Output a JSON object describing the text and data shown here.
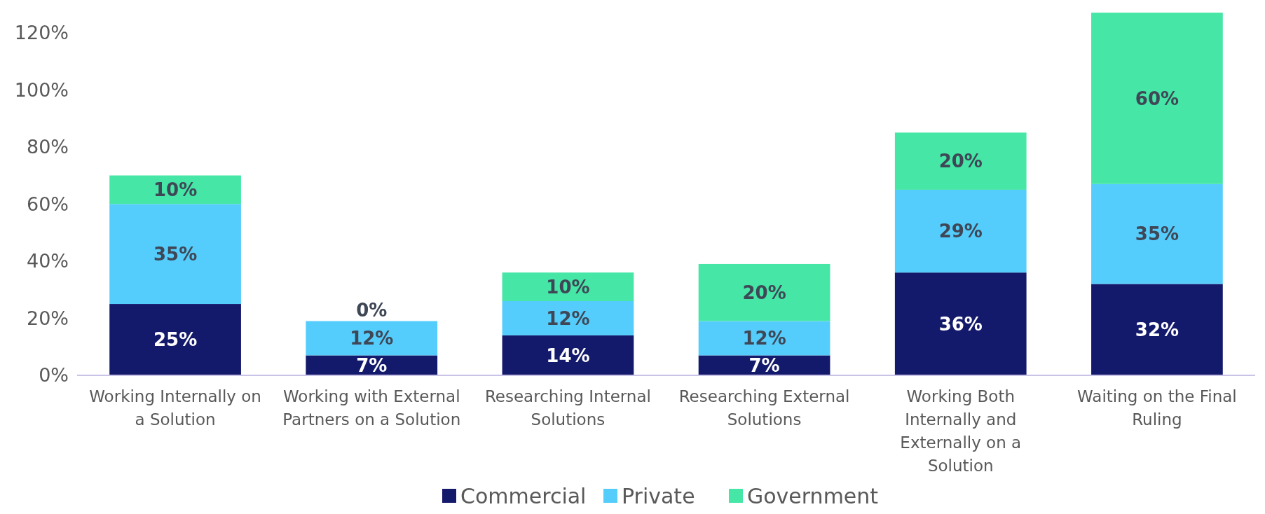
{
  "chart_data": {
    "type": "bar",
    "stacked": true,
    "categories": [
      "Working Internally on a Solution",
      "Working with External Partners on a Solution",
      "Researching Internal Solutions",
      "Researching External Solutions",
      "Working Both Internally and Externally on a Solution",
      "Waiting on the Final Ruling"
    ],
    "series": [
      {
        "name": "Commercial",
        "color": "#141a6b",
        "values": [
          25,
          7,
          14,
          7,
          36,
          32
        ],
        "value_labels": [
          "25%",
          "7%",
          "14%",
          "7%",
          "36%",
          "32%"
        ]
      },
      {
        "name": "Private",
        "color": "#55cdfc",
        "values": [
          35,
          12,
          12,
          12,
          29,
          35
        ],
        "value_labels": [
          "35%",
          "12%",
          "12%",
          "12%",
          "29%",
          "35%"
        ]
      },
      {
        "name": "Government",
        "color": "#45e6a6",
        "values": [
          10,
          0,
          10,
          20,
          20,
          60
        ],
        "value_labels": [
          "10%",
          "0%",
          "10%",
          "20%",
          "20%",
          "60%"
        ]
      }
    ],
    "ylim": [
      0,
      128
    ],
    "yticks": [
      {
        "value": 0,
        "label": "0%"
      },
      {
        "value": 20,
        "label": "20%"
      },
      {
        "value": 40,
        "label": "40%"
      },
      {
        "value": 60,
        "label": "60%"
      },
      {
        "value": 80,
        "label": "80%"
      },
      {
        "value": 100,
        "label": "100%"
      },
      {
        "value": 120,
        "label": "120%"
      }
    ],
    "grid": false,
    "legend": "bottom"
  }
}
